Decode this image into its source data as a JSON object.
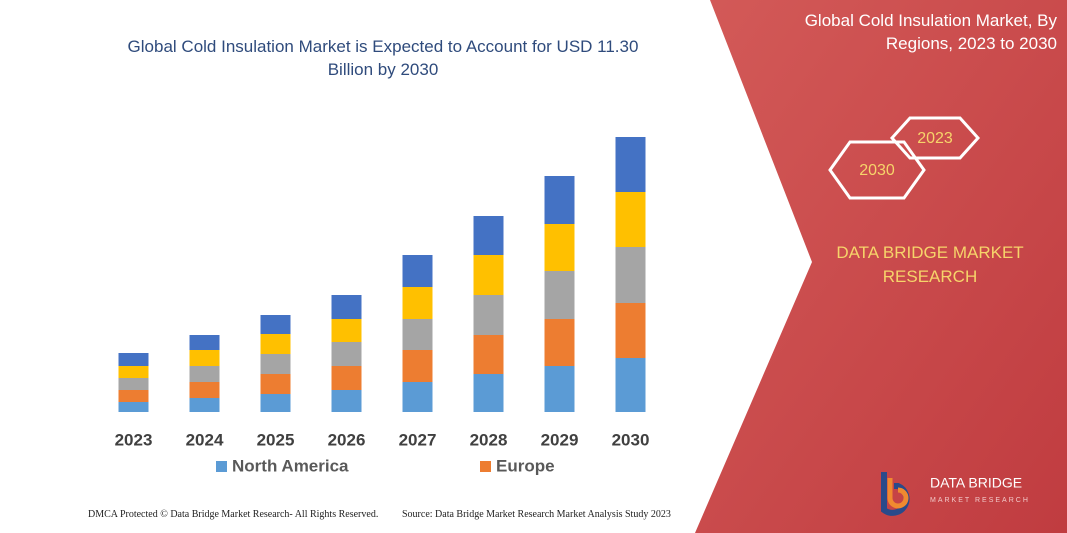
{
  "chart_data": {
    "type": "bar",
    "stacked": true,
    "title": "Global Cold Insulation Market is Expected to Account for USD 11.30 Billion by 2030",
    "categories": [
      "2023",
      "2024",
      "2025",
      "2026",
      "2027",
      "2028",
      "2029",
      "2030"
    ],
    "series": [
      {
        "name": "North America",
        "color": "#5b9bd5",
        "values": [
          10,
          14,
          18,
          22,
          30,
          38,
          46,
          54
        ]
      },
      {
        "name": "Europe",
        "color": "#ed7d31",
        "values": [
          12,
          16,
          20,
          24,
          32,
          39,
          47,
          55
        ]
      },
      {
        "color": "#a5a5a5",
        "values": [
          12,
          16,
          20,
          24,
          31,
          40,
          48,
          56
        ]
      },
      {
        "color": "#ffc000",
        "values": [
          12,
          16,
          20,
          23,
          32,
          40,
          47,
          55
        ]
      },
      {
        "color": "#4472c4",
        "values": [
          13,
          15,
          19,
          24,
          32,
          39,
          48,
          55
        ]
      }
    ]
  },
  "panel": {
    "title": "Global Cold Insulation Market, By Regions, 2023 to 2030",
    "hex_2023": "2023",
    "hex_2030": "2030",
    "brand": "DATA BRIDGE MARKET RESEARCH"
  },
  "logo": {
    "name": "DATA BRIDGE",
    "tagline": "MARKET RESEARCH"
  },
  "footer": {
    "copyright": "DMCA Protected © Data Bridge Market Research- All Rights Reserved.",
    "source": "Source: Data Bridge Market Research Market Analysis Study 2023"
  }
}
